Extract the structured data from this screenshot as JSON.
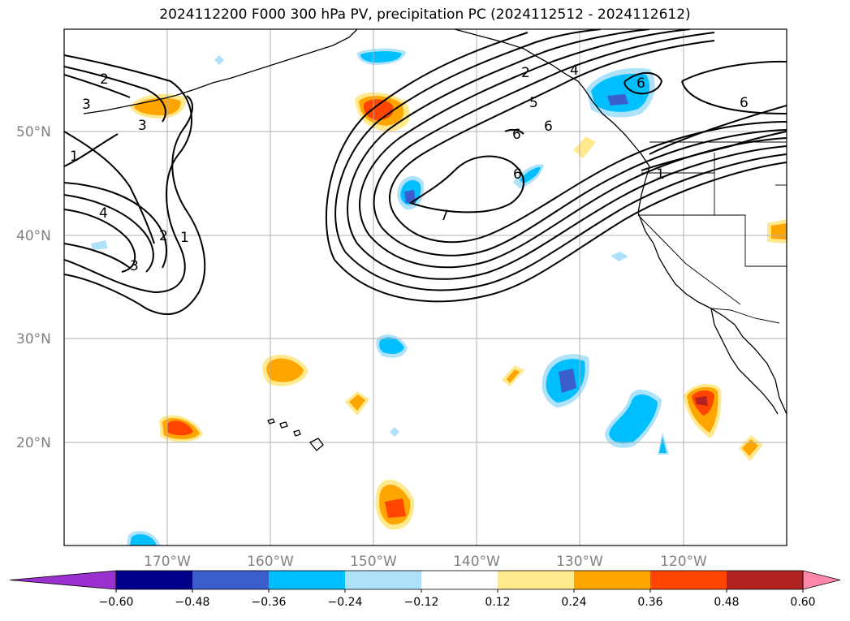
{
  "title": "2024112200 F000 300 hPa PV, precipitation PC (2024112512 - 2024112612)",
  "map": {
    "lat_ticks": [
      "50°N",
      "40°N",
      "30°N",
      "20°N"
    ],
    "lon_ticks": [
      "170°W",
      "160°W",
      "150°W",
      "140°W",
      "130°W",
      "120°W"
    ],
    "contour_labels": [
      "2",
      "3",
      "3",
      "1",
      "4",
      "2",
      "1",
      "3",
      "2",
      "4",
      "5",
      "6",
      "6",
      "6",
      "6",
      "7",
      "6",
      "1"
    ]
  },
  "colorbar": {
    "ticks": [
      "−0.60",
      "−0.48",
      "−0.36",
      "−0.24",
      "−0.12",
      "0.12",
      "0.24",
      "0.36",
      "0.48",
      "0.60"
    ],
    "colors": [
      "#9b30d0",
      "#00008b",
      "#3a5fcd",
      "#00bfff",
      "#aee2fa",
      "#ffffff",
      "#ffe98c",
      "#ffa500",
      "#ff4500",
      "#b22222",
      "#ff88aa"
    ]
  }
}
